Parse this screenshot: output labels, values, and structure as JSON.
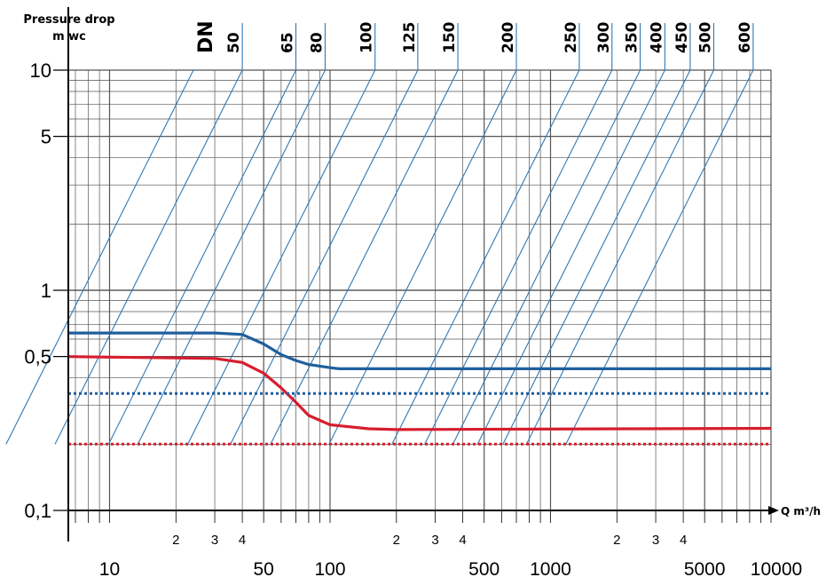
{
  "chart_data": {
    "type": "line",
    "ylabel_line1": "Pressure drop",
    "ylabel_line2": "m wc",
    "xlabel": "Q m³/h",
    "dn_title": "DN",
    "x_scale": "log",
    "y_scale": "log",
    "xlim": [
      6.5,
      10000
    ],
    "ylim": [
      0.1,
      10
    ],
    "grid": true,
    "y_ticks": [
      {
        "value": 10,
        "label": "10"
      },
      {
        "value": 5,
        "label": "5"
      },
      {
        "value": 1,
        "label": "1"
      },
      {
        "value": 0.5,
        "label": "0,5"
      },
      {
        "value": 0.1,
        "label": "0,1"
      }
    ],
    "x_major_ticks": [
      {
        "value": 10,
        "label": "10"
      },
      {
        "value": 50,
        "label": "50"
      },
      {
        "value": 100,
        "label": "100"
      },
      {
        "value": 500,
        "label": "500"
      },
      {
        "value": 1000,
        "label": "1000"
      },
      {
        "value": 5000,
        "label": "5000"
      },
      {
        "value": 10000,
        "label": "10000"
      }
    ],
    "x_minor_ticks": [
      {
        "value": 20,
        "label": "2"
      },
      {
        "value": 30,
        "label": "3"
      },
      {
        "value": 40,
        "label": "4"
      },
      {
        "value": 200,
        "label": "2"
      },
      {
        "value": 300,
        "label": "3"
      },
      {
        "value": 400,
        "label": "4"
      },
      {
        "value": 2000,
        "label": "2"
      },
      {
        "value": 3000,
        "label": "3"
      },
      {
        "value": 4000,
        "label": "4"
      }
    ],
    "dn_lines": [
      {
        "label": "",
        "q_at_10": 24
      },
      {
        "label": "50",
        "q_at_10": 40
      },
      {
        "label": "65",
        "q_at_10": 70
      },
      {
        "label": "80",
        "q_at_10": 95
      },
      {
        "label": "100",
        "q_at_10": 160
      },
      {
        "label": "125",
        "q_at_10": 250
      },
      {
        "label": "150",
        "q_at_10": 380
      },
      {
        "label": "200",
        "q_at_10": 700
      },
      {
        "label": "250",
        "q_at_10": 1350
      },
      {
        "label": "300",
        "q_at_10": 1900
      },
      {
        "label": "350",
        "q_at_10": 2550
      },
      {
        "label": "400",
        "q_at_10": 3300
      },
      {
        "label": "450",
        "q_at_10": 4300
      },
      {
        "label": "500",
        "q_at_10": 5500
      },
      {
        "label": "600",
        "q_at_10": 8300
      }
    ],
    "series": [
      {
        "color": "#1f5f9e",
        "style": "solid",
        "points": [
          [
            6.5,
            0.64
          ],
          [
            30,
            0.64
          ],
          [
            40,
            0.63
          ],
          [
            50,
            0.57
          ],
          [
            60,
            0.51
          ],
          [
            70,
            0.48
          ],
          [
            80,
            0.46
          ],
          [
            100,
            0.445
          ],
          [
            110,
            0.44
          ],
          [
            10000,
            0.44
          ]
        ]
      },
      {
        "color": "#d61e2e",
        "style": "solid",
        "points": [
          [
            6.5,
            0.5
          ],
          [
            30,
            0.49
          ],
          [
            40,
            0.47
          ],
          [
            50,
            0.42
          ],
          [
            60,
            0.36
          ],
          [
            70,
            0.31
          ],
          [
            80,
            0.27
          ],
          [
            100,
            0.245
          ],
          [
            150,
            0.235
          ],
          [
            200,
            0.233
          ],
          [
            10000,
            0.236
          ]
        ]
      },
      {
        "color": "#1f5f9e",
        "style": "dotted",
        "points": [
          [
            6.5,
            0.34
          ],
          [
            10000,
            0.34
          ]
        ]
      },
      {
        "color": "#d61e2e",
        "style": "dotted",
        "points": [
          [
            6.5,
            0.2
          ],
          [
            10000,
            0.2
          ]
        ]
      }
    ],
    "colors": {
      "grid": "#555555",
      "axis": "#000000",
      "dn_line": "#2f78b5"
    }
  }
}
